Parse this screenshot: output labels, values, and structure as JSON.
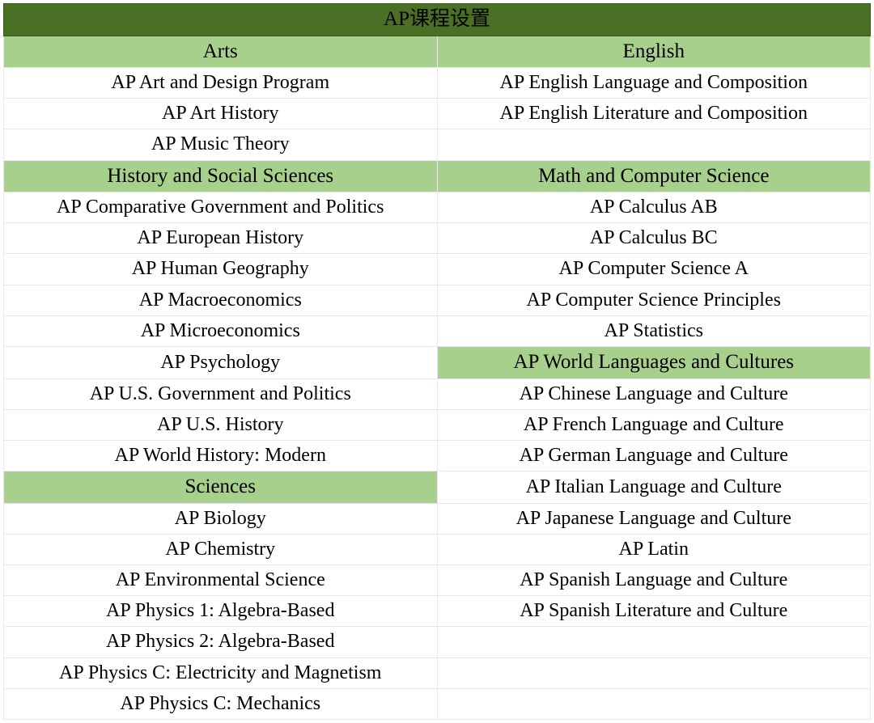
{
  "table": {
    "type": "table",
    "title": "AP课程设置",
    "colors": {
      "title_bg": "#4a7026",
      "title_text": "#000000",
      "header_bg": "#a8d08d",
      "header_text": "#000000",
      "cell_bg": "#ffffff",
      "cell_text": "#000000",
      "border": "#e8e8e8"
    },
    "typography": {
      "font_family": "Georgia, Times New Roman, serif",
      "title_fontsize": 25,
      "header_fontsize": 25,
      "cell_fontsize": 24
    },
    "columns": 2,
    "rows": [
      {
        "left": {
          "text": "Arts",
          "type": "header"
        },
        "right": {
          "text": "English",
          "type": "header"
        }
      },
      {
        "left": {
          "text": "AP Art and Design Program",
          "type": "data"
        },
        "right": {
          "text": "AP English Language and Composition",
          "type": "data"
        }
      },
      {
        "left": {
          "text": "AP Art History",
          "type": "data"
        },
        "right": {
          "text": "AP English Literature and Composition",
          "type": "data"
        }
      },
      {
        "left": {
          "text": "AP Music Theory",
          "type": "data"
        },
        "right": {
          "text": "",
          "type": "data"
        }
      },
      {
        "left": {
          "text": "History and Social Sciences",
          "type": "header"
        },
        "right": {
          "text": "Math and Computer Science",
          "type": "header"
        }
      },
      {
        "left": {
          "text": "AP Comparative Government and Politics",
          "type": "data"
        },
        "right": {
          "text": "AP Calculus AB",
          "type": "data"
        }
      },
      {
        "left": {
          "text": "AP European History",
          "type": "data"
        },
        "right": {
          "text": "AP Calculus BC",
          "type": "data"
        }
      },
      {
        "left": {
          "text": "AP Human Geography",
          "type": "data"
        },
        "right": {
          "text": "AP Computer Science A",
          "type": "data"
        }
      },
      {
        "left": {
          "text": "AP Macroeconomics",
          "type": "data"
        },
        "right": {
          "text": "AP Computer Science Principles",
          "type": "data"
        }
      },
      {
        "left": {
          "text": "AP Microeconomics",
          "type": "data"
        },
        "right": {
          "text": "AP Statistics",
          "type": "data"
        }
      },
      {
        "left": {
          "text": "AP Psychology",
          "type": "data"
        },
        "right": {
          "text": "AP World Languages and Cultures",
          "type": "header"
        }
      },
      {
        "left": {
          "text": "AP U.S. Government and Politics",
          "type": "data"
        },
        "right": {
          "text": "AP Chinese Language and Culture",
          "type": "data"
        }
      },
      {
        "left": {
          "text": "AP U.S. History",
          "type": "data"
        },
        "right": {
          "text": "AP French Language and Culture",
          "type": "data"
        }
      },
      {
        "left": {
          "text": "AP World History: Modern",
          "type": "data"
        },
        "right": {
          "text": "AP German Language and Culture",
          "type": "data"
        }
      },
      {
        "left": {
          "text": "Sciences",
          "type": "header"
        },
        "right": {
          "text": "AP Italian Language and Culture",
          "type": "data"
        }
      },
      {
        "left": {
          "text": "AP Biology",
          "type": "data"
        },
        "right": {
          "text": "AP Japanese Language and Culture",
          "type": "data"
        }
      },
      {
        "left": {
          "text": "AP Chemistry",
          "type": "data"
        },
        "right": {
          "text": "AP Latin",
          "type": "data"
        }
      },
      {
        "left": {
          "text": "AP Environmental Science",
          "type": "data"
        },
        "right": {
          "text": "AP Spanish Language and Culture",
          "type": "data"
        }
      },
      {
        "left": {
          "text": "AP Physics 1: Algebra-Based",
          "type": "data"
        },
        "right": {
          "text": "AP Spanish Literature and Culture",
          "type": "data"
        }
      },
      {
        "left": {
          "text": "AP Physics 2: Algebra-Based",
          "type": "data"
        },
        "right": {
          "text": "",
          "type": "data"
        }
      },
      {
        "left": {
          "text": "AP Physics C: Electricity and Magnetism",
          "type": "data"
        },
        "right": {
          "text": "",
          "type": "data"
        }
      },
      {
        "left": {
          "text": "AP Physics C: Mechanics",
          "type": "data"
        },
        "right": {
          "text": "",
          "type": "data"
        }
      }
    ]
  }
}
